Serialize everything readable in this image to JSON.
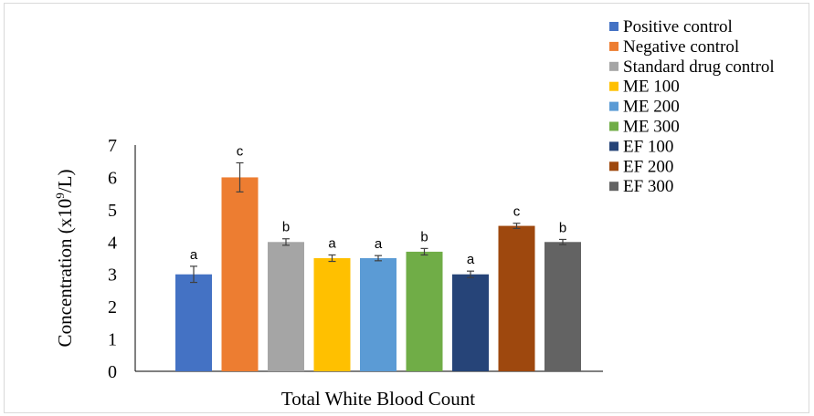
{
  "chart_data": {
    "type": "bar",
    "title": "",
    "xlabel": "Total White Blood Count",
    "ylabel_main": "Concentration (x10",
    "ylabel_sup": "9",
    "ylabel_tail": "/L)",
    "ylim": [
      0,
      7
    ],
    "yticks": [
      0,
      1,
      2,
      3,
      4,
      5,
      6,
      7
    ],
    "grid": false,
    "legend_position": "top-right",
    "series": [
      {
        "name": "Positive control",
        "value": 3.0,
        "error": 0.25,
        "letter": "a",
        "color": "#4472C4"
      },
      {
        "name": "Negative control",
        "value": 6.0,
        "error": 0.45,
        "letter": "c",
        "color": "#ED7D31"
      },
      {
        "name": "Standard drug control",
        "value": 4.0,
        "error": 0.1,
        "letter": "b",
        "color": "#A5A5A5"
      },
      {
        "name": "ME 100",
        "value": 3.5,
        "error": 0.1,
        "letter": "a",
        "color": "#FFC000"
      },
      {
        "name": "ME 200",
        "value": 3.5,
        "error": 0.08,
        "letter": "a",
        "color": "#5B9BD5"
      },
      {
        "name": "ME 300",
        "value": 3.7,
        "error": 0.1,
        "letter": "b",
        "color": "#70AD47"
      },
      {
        "name": "EF 100",
        "value": 3.0,
        "error": 0.1,
        "letter": "a",
        "color": "#264478"
      },
      {
        "name": "EF 200",
        "value": 4.5,
        "error": 0.08,
        "letter": "c",
        "color": "#9E480E"
      },
      {
        "name": "EF 300",
        "value": 4.0,
        "error": 0.08,
        "letter": "b",
        "color": "#636363"
      }
    ]
  }
}
